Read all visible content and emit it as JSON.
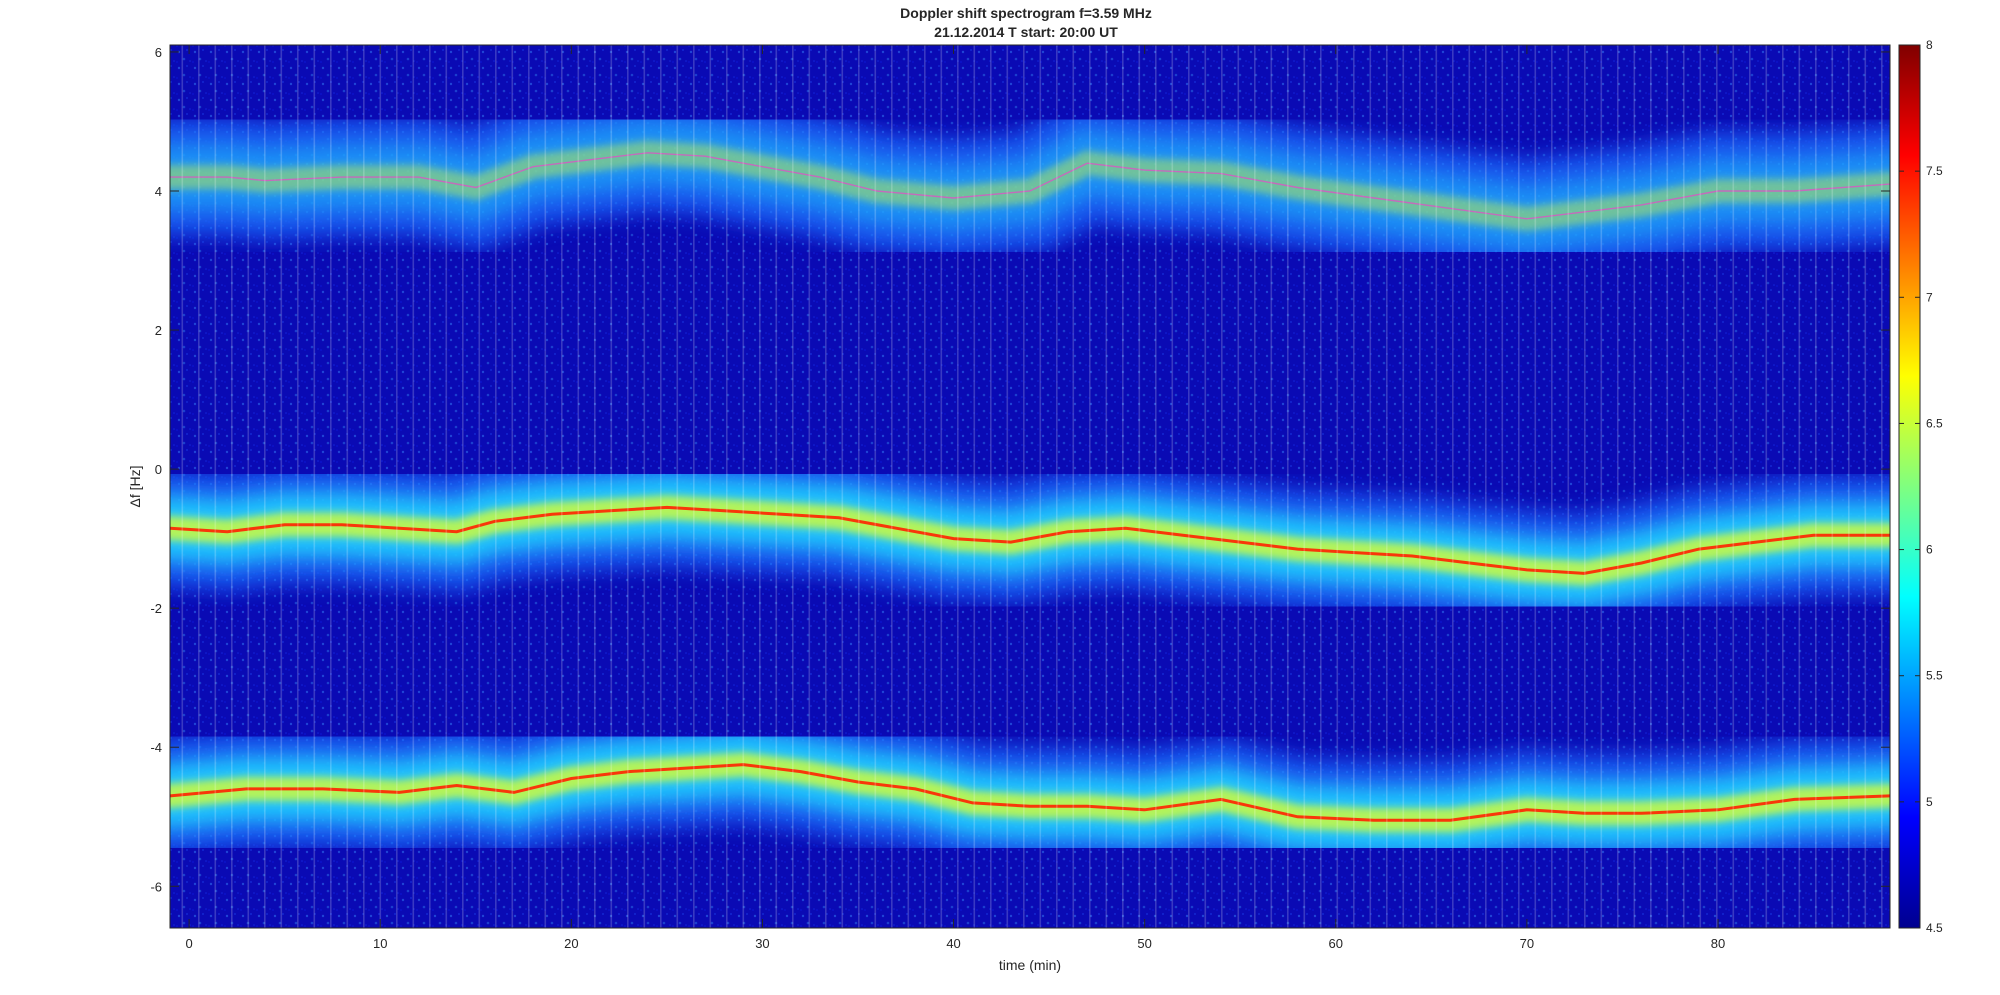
{
  "chart_data": {
    "type": "heatmap",
    "title": "Doppler shift spectrogram f=3.59 MHz",
    "subtitle": "21.12.2014   T start: 20:00 UT",
    "xlabel": "time (min)",
    "ylabel": "Δf [Hz]",
    "xlim": [
      -1,
      89
    ],
    "ylim": [
      -6.6,
      6.1
    ],
    "xticks": [
      0,
      10,
      20,
      30,
      40,
      50,
      60,
      70,
      80
    ],
    "yticks": [
      6,
      4,
      2,
      0,
      -2,
      -4,
      -6
    ],
    "colormap": "jet",
    "colorbar": {
      "min": 4.5,
      "max": 8,
      "ticks": [
        8,
        7.5,
        7,
        6.5,
        6,
        5.5,
        5,
        4.5
      ],
      "position": "right"
    },
    "series": [
      {
        "x": [
          -1,
          2,
          4,
          8,
          12,
          15,
          18,
          21,
          24,
          27,
          30,
          33,
          36,
          40,
          44,
          47,
          50,
          54,
          58,
          62,
          66,
          70,
          73,
          76,
          80,
          84,
          89
        ],
        "y": [
          4.2,
          4.2,
          4.15,
          4.2,
          4.2,
          4.05,
          4.35,
          4.45,
          4.55,
          4.5,
          4.35,
          4.2,
          4.0,
          3.9,
          4.0,
          4.4,
          4.3,
          4.25,
          4.05,
          3.9,
          3.75,
          3.6,
          3.7,
          3.8,
          4.0,
          4.0,
          4.1
        ]
      },
      {
        "x": [
          -1,
          2,
          5,
          8,
          11,
          14,
          16,
          19,
          22,
          25,
          28,
          31,
          34,
          37,
          40,
          43,
          46,
          49,
          52,
          55,
          58,
          61,
          64,
          67,
          70,
          73,
          76,
          79,
          82,
          85,
          89
        ],
        "y": [
          -0.85,
          -0.9,
          -0.8,
          -0.8,
          -0.85,
          -0.9,
          -0.75,
          -0.65,
          -0.6,
          -0.55,
          -0.6,
          -0.65,
          -0.7,
          -0.85,
          -1.0,
          -1.05,
          -0.9,
          -0.85,
          -0.95,
          -1.05,
          -1.15,
          -1.2,
          -1.25,
          -1.35,
          -1.45,
          -1.5,
          -1.35,
          -1.15,
          -1.05,
          -0.95,
          -0.95
        ]
      },
      {
        "x": [
          -1,
          3,
          7,
          11,
          14,
          17,
          20,
          23,
          26,
          29,
          32,
          35,
          38,
          41,
          44,
          47,
          50,
          54,
          58,
          62,
          66,
          70,
          73,
          76,
          80,
          84,
          89
        ],
        "y": [
          -4.7,
          -4.6,
          -4.6,
          -4.65,
          -4.55,
          -4.65,
          -4.45,
          -4.35,
          -4.3,
          -4.25,
          -4.35,
          -4.5,
          -4.6,
          -4.8,
          -4.85,
          -4.85,
          -4.9,
          -4.75,
          -5.0,
          -5.05,
          -5.05,
          -4.9,
          -4.95,
          -4.95,
          -4.9,
          -4.75,
          -4.7
        ]
      }
    ]
  }
}
